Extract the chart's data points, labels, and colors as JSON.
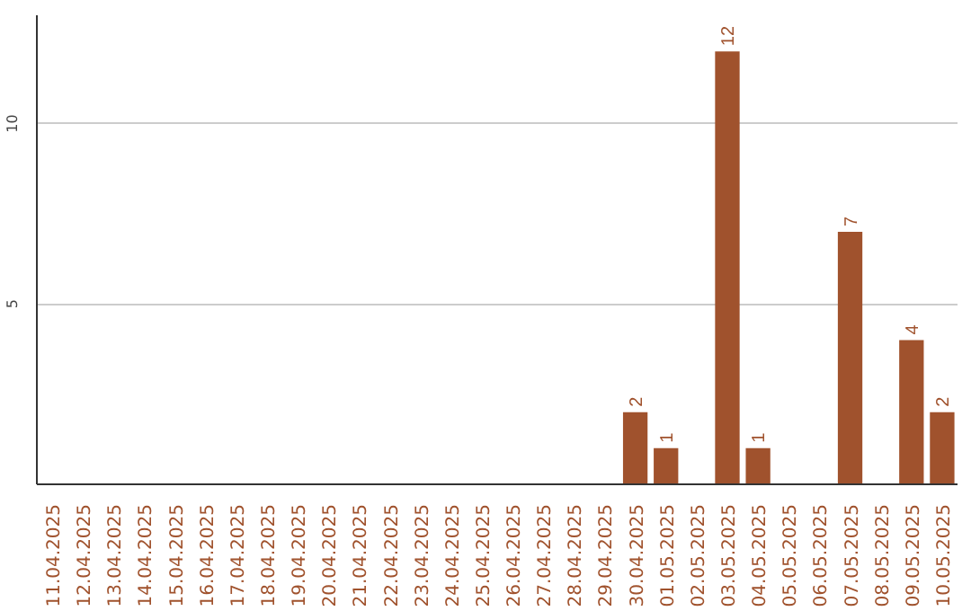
{
  "chart_data": {
    "type": "bar",
    "categories": [
      "11.04.2025",
      "12.04.2025",
      "13.04.2025",
      "14.04.2025",
      "15.04.2025",
      "16.04.2025",
      "17.04.2025",
      "18.04.2025",
      "19.04.2025",
      "20.04.2025",
      "21.04.2025",
      "22.04.2025",
      "23.04.2025",
      "24.04.2025",
      "25.04.2025",
      "26.04.2025",
      "27.04.2025",
      "28.04.2025",
      "29.04.2025",
      "30.04.2025",
      "01.05.2025",
      "02.05.2025",
      "03.05.2025",
      "04.05.2025",
      "05.05.2025",
      "06.05.2025",
      "07.05.2025",
      "08.05.2025",
      "09.05.2025",
      "10.05.2025"
    ],
    "values": [
      0,
      0,
      0,
      0,
      0,
      0,
      0,
      0,
      0,
      0,
      0,
      0,
      0,
      0,
      0,
      0,
      0,
      0,
      0,
      2,
      1,
      0,
      12,
      1,
      0,
      0,
      7,
      0,
      4,
      2
    ],
    "value_labels": [
      null,
      null,
      null,
      null,
      null,
      null,
      null,
      null,
      null,
      null,
      null,
      null,
      null,
      null,
      null,
      null,
      null,
      null,
      null,
      "2",
      "1",
      null,
      "12",
      "1",
      null,
      null,
      "7",
      null,
      "4",
      "2"
    ],
    "color": "#a0522d",
    "ylim": [
      0,
      13
    ],
    "yticks": [
      5,
      10
    ],
    "grid": "y"
  }
}
